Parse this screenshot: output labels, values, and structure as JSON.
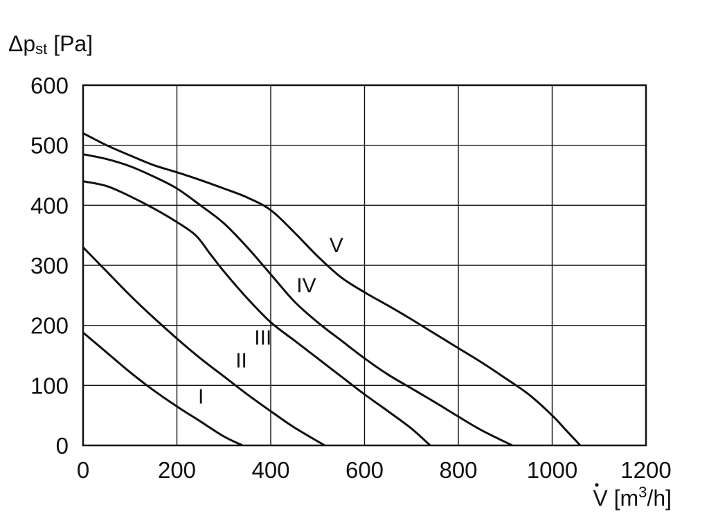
{
  "chart_data": {
    "type": "line",
    "ylabel": {
      "symbol": "Δp",
      "sub": "st",
      "unit": " [Pa]"
    },
    "xlabel": {
      "symbol": "V",
      "unit_pre": " [m",
      "sup": "3",
      "unit_post": "/h]"
    },
    "xlim": [
      0,
      1200
    ],
    "ylim": [
      0,
      600
    ],
    "xticks": [
      0,
      200,
      400,
      600,
      800,
      1000,
      1200
    ],
    "yticks": [
      0,
      100,
      200,
      300,
      400,
      500,
      600
    ],
    "grid": true,
    "series": [
      {
        "name": "I",
        "label_at": [
          245,
          70
        ],
        "x": [
          0,
          50,
          100,
          150,
          200,
          250,
          300,
          340
        ],
        "y": [
          188,
          155,
          122,
          92,
          65,
          40,
          15,
          0
        ]
      },
      {
        "name": "II",
        "label_at": [
          325,
          130
        ],
        "x": [
          0,
          50,
          100,
          150,
          200,
          250,
          300,
          350,
          400,
          450,
          515
        ],
        "y": [
          330,
          290,
          250,
          213,
          178,
          145,
          115,
          85,
          57,
          30,
          0
        ]
      },
      {
        "name": "III",
        "label_at": [
          365,
          168
        ],
        "x": [
          0,
          50,
          100,
          150,
          200,
          240,
          270,
          300,
          350,
          400,
          450,
          500,
          550,
          600,
          650,
          700,
          740
        ],
        "y": [
          440,
          432,
          415,
          395,
          372,
          350,
          320,
          290,
          245,
          205,
          175,
          145,
          115,
          85,
          57,
          28,
          0
        ]
      },
      {
        "name": "IV",
        "label_at": [
          455,
          255
        ],
        "x": [
          0,
          50,
          100,
          150,
          200,
          250,
          300,
          350,
          400,
          450,
          500,
          550,
          600,
          650,
          700,
          750,
          800,
          850,
          915
        ],
        "y": [
          485,
          477,
          465,
          448,
          428,
          400,
          370,
          330,
          285,
          240,
          205,
          175,
          145,
          118,
          95,
          72,
          48,
          25,
          0
        ]
      },
      {
        "name": "V",
        "label_at": [
          525,
          322
        ],
        "x": [
          0,
          50,
          100,
          150,
          200,
          250,
          300,
          350,
          400,
          450,
          500,
          550,
          600,
          650,
          700,
          750,
          800,
          850,
          900,
          950,
          1000,
          1030,
          1060
        ],
        "y": [
          520,
          500,
          483,
          467,
          455,
          442,
          428,
          413,
          392,
          355,
          315,
          280,
          255,
          233,
          210,
          186,
          162,
          138,
          112,
          85,
          50,
          25,
          0
        ]
      }
    ]
  }
}
